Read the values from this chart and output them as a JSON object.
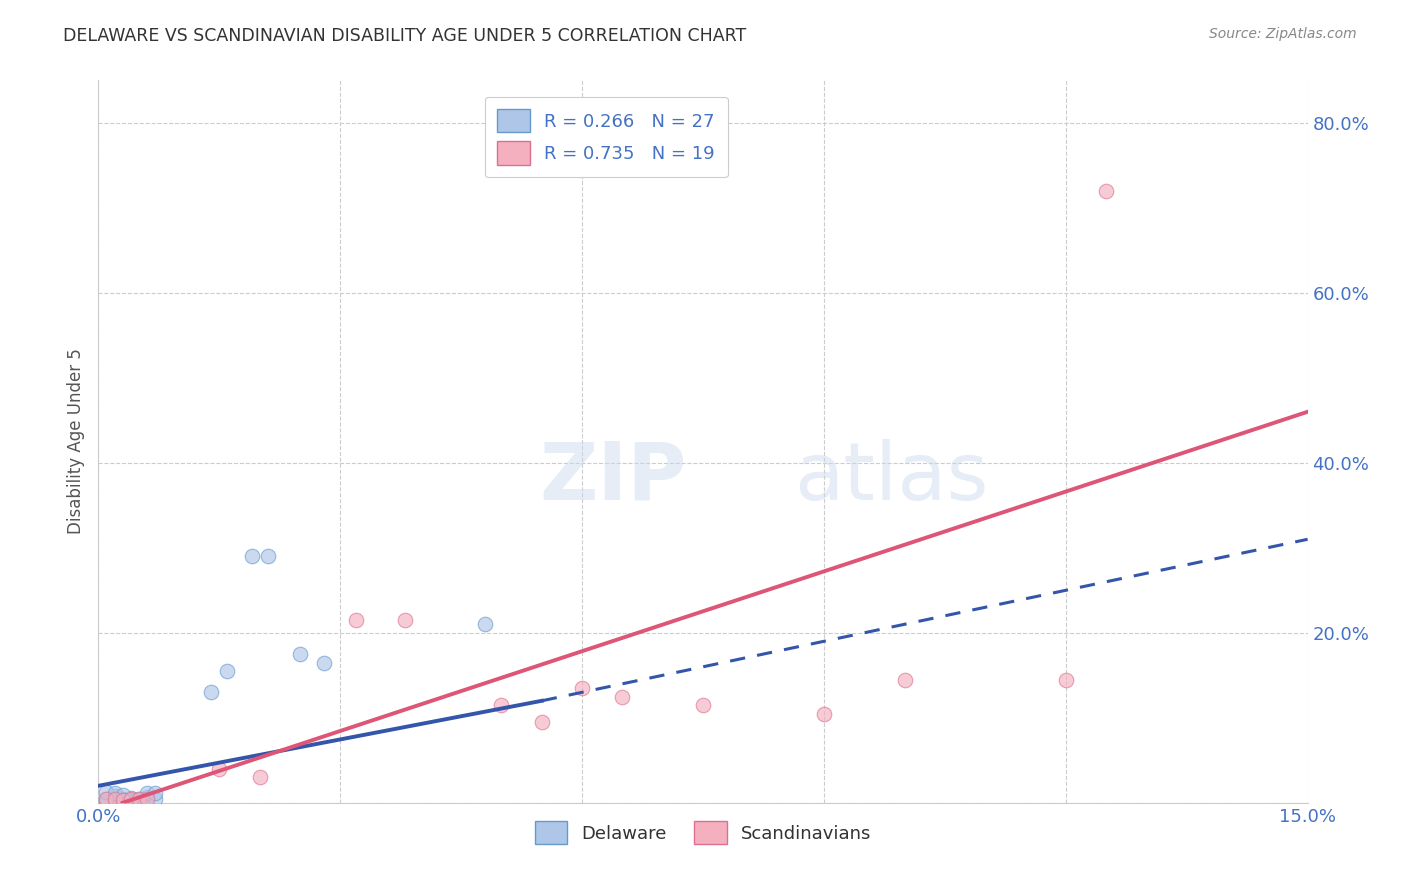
{
  "title": "DELAWARE VS SCANDINAVIAN DISABILITY AGE UNDER 5 CORRELATION CHART",
  "source": "Source: ZipAtlas.com",
  "ylabel": "Disability Age Under 5",
  "xlim": [
    0.0,
    0.15
  ],
  "ylim": [
    0.0,
    0.85
  ],
  "xticks": [
    0.0,
    0.03,
    0.06,
    0.09,
    0.12,
    0.15
  ],
  "xtick_labels": [
    "0.0%",
    "",
    "",
    "",
    "",
    "15.0%"
  ],
  "yticks": [
    0.0,
    0.2,
    0.4,
    0.6,
    0.8
  ],
  "ytick_labels": [
    "",
    "20.0%",
    "40.0%",
    "60.0%",
    "80.0%"
  ],
  "delaware_points": [
    [
      0.001,
      0.005
    ],
    [
      0.002,
      0.004
    ],
    [
      0.002,
      0.008
    ],
    [
      0.003,
      0.005
    ],
    [
      0.003,
      0.003
    ],
    [
      0.004,
      0.003
    ],
    [
      0.004,
      0.006
    ],
    [
      0.005,
      0.003
    ],
    [
      0.005,
      0.005
    ],
    [
      0.006,
      0.007
    ],
    [
      0.007,
      0.004
    ],
    [
      0.001,
      0.001
    ],
    [
      0.002,
      0.002
    ],
    [
      0.003,
      0.002
    ],
    [
      0.004,
      0.002
    ],
    [
      0.001,
      0.013
    ],
    [
      0.002,
      0.012
    ],
    [
      0.003,
      0.009
    ],
    [
      0.006,
      0.012
    ],
    [
      0.007,
      0.011
    ],
    [
      0.019,
      0.29
    ],
    [
      0.021,
      0.29
    ],
    [
      0.014,
      0.13
    ],
    [
      0.016,
      0.155
    ],
    [
      0.025,
      0.175
    ],
    [
      0.028,
      0.165
    ],
    [
      0.048,
      0.21
    ]
  ],
  "scandinavian_points": [
    [
      0.001,
      0.004
    ],
    [
      0.002,
      0.004
    ],
    [
      0.003,
      0.003
    ],
    [
      0.004,
      0.004
    ],
    [
      0.005,
      0.005
    ],
    [
      0.006,
      0.005
    ],
    [
      0.015,
      0.04
    ],
    [
      0.02,
      0.03
    ],
    [
      0.032,
      0.215
    ],
    [
      0.038,
      0.215
    ],
    [
      0.05,
      0.115
    ],
    [
      0.055,
      0.095
    ],
    [
      0.06,
      0.135
    ],
    [
      0.065,
      0.125
    ],
    [
      0.075,
      0.115
    ],
    [
      0.09,
      0.105
    ],
    [
      0.1,
      0.145
    ],
    [
      0.12,
      0.145
    ],
    [
      0.125,
      0.72
    ]
  ],
  "delaware_line_solid": {
    "x0": 0.0,
    "y0": 0.02,
    "x1": 0.055,
    "y1": 0.12
  },
  "delaware_line_dashed": {
    "x0": 0.055,
    "y0": 0.12,
    "x1": 0.15,
    "y1": 0.31
  },
  "scandinavian_line": {
    "x0": 0.003,
    "y0": 0.0,
    "x1": 0.15,
    "y1": 0.46
  },
  "bg_color": "#ffffff",
  "grid_color": "#cccccc",
  "title_color": "#333333",
  "axis_label_color": "#4472c4",
  "delaware_fill": "#aec6e8",
  "delaware_edge": "#6699cc",
  "scandinavian_fill": "#f4b0bf",
  "scandinavian_edge": "#dd7090",
  "delaware_line_color": "#3355aa",
  "scandinavian_line_color": "#dd5577",
  "scatter_alpha": 0.65,
  "scatter_size": 110
}
